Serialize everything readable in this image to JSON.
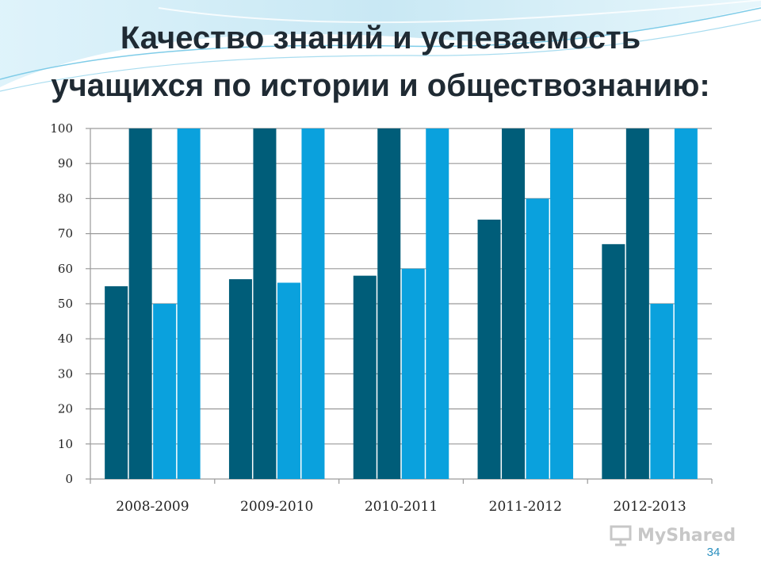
{
  "title": {
    "line1": "Качество знаний и успеваемость",
    "line2": "учащихся по истории и обществознанию:"
  },
  "page_number": "34",
  "watermark": "MyShared",
  "colors": {
    "dark": "#005d79",
    "light": "#0aa1dd",
    "grid": "#9a9a9a",
    "wave": "#bfe4f2"
  },
  "chart_data": {
    "type": "bar",
    "categories": [
      "2008-2009",
      "2009-2010",
      "2010-2011",
      "2011-2012",
      "2012-2013"
    ],
    "series": [
      {
        "values": [
          55,
          57,
          58,
          74,
          67
        ],
        "color": "#005d79"
      },
      {
        "values": [
          100,
          100,
          100,
          100,
          100
        ],
        "color": "#005d79"
      },
      {
        "values": [
          50,
          56,
          60,
          80,
          50
        ],
        "color": "#0aa1dd"
      },
      {
        "values": [
          100,
          100,
          100,
          100,
          100
        ],
        "color": "#0aa1dd"
      }
    ],
    "ylim": [
      0,
      100
    ],
    "yticks": [
      0,
      10,
      20,
      30,
      40,
      50,
      60,
      70,
      80,
      90,
      100
    ],
    "grid": true,
    "xlabel": "",
    "ylabel": ""
  }
}
